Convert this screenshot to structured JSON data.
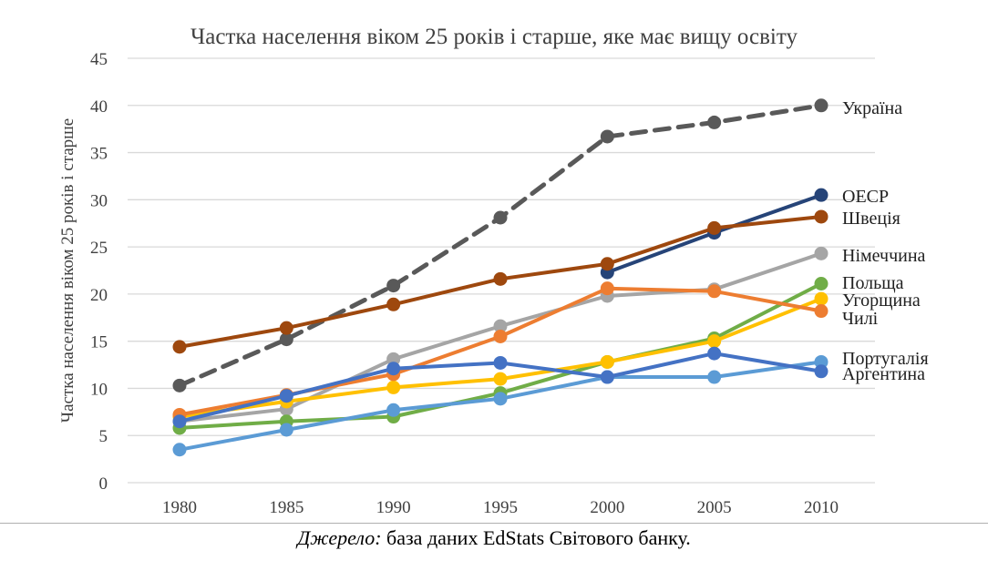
{
  "chart_data": {
    "type": "line",
    "title": "Частка населення віком 25 років і старше, яке має вищу освіту",
    "ylabel": "Частка населення віком 25 років і старше",
    "xlabel": "",
    "x": [
      1980,
      1985,
      1990,
      1995,
      2000,
      2005,
      2010
    ],
    "ylim": [
      0,
      45
    ],
    "y_ticks": [
      0,
      5,
      10,
      15,
      20,
      25,
      30,
      35,
      40,
      45
    ],
    "grid": "horizontal",
    "legend": "none",
    "series": [
      {
        "name": "Україна",
        "color": "#595959",
        "dashed": true,
        "values": [
          10.3,
          15.2,
          20.9,
          28.1,
          36.7,
          38.2,
          40.0
        ]
      },
      {
        "name": "ОЕСР",
        "color": "#264478",
        "dashed": false,
        "values": [
          null,
          null,
          null,
          null,
          22.3,
          26.5,
          30.5
        ]
      },
      {
        "name": "Швеція",
        "color": "#9E480E",
        "dashed": false,
        "values": [
          14.4,
          16.4,
          18.9,
          21.6,
          23.2,
          27.0,
          28.2
        ]
      },
      {
        "name": "Німеччина",
        "color": "#A5A5A5",
        "dashed": false,
        "values": [
          6.5,
          7.8,
          13.1,
          16.6,
          19.8,
          20.5,
          24.3
        ]
      },
      {
        "name": "Польща",
        "color": "#70AD47",
        "dashed": false,
        "values": [
          5.8,
          6.5,
          7.0,
          9.5,
          12.8,
          15.3,
          21.1
        ]
      },
      {
        "name": "Угорщина",
        "color": "#FFC000",
        "dashed": false,
        "values": [
          7.0,
          8.6,
          10.1,
          11.0,
          12.8,
          15.0,
          19.5
        ]
      },
      {
        "name": "Чилі",
        "color": "#ED7D31",
        "dashed": false,
        "values": [
          7.2,
          9.3,
          11.5,
          15.5,
          20.6,
          20.3,
          18.2
        ]
      },
      {
        "name": "Португалія",
        "color": "#5B9BD5",
        "dashed": false,
        "values": [
          3.5,
          5.6,
          7.7,
          8.9,
          11.2,
          11.2,
          12.8
        ]
      },
      {
        "name": "Аргентина",
        "color": "#4472C4",
        "dashed": false,
        "values": [
          6.5,
          9.2,
          12.1,
          12.7,
          11.2,
          13.7,
          11.8
        ]
      }
    ]
  },
  "source": {
    "label": "Джерело:",
    "text": " база даних EdStats Світового банку."
  }
}
